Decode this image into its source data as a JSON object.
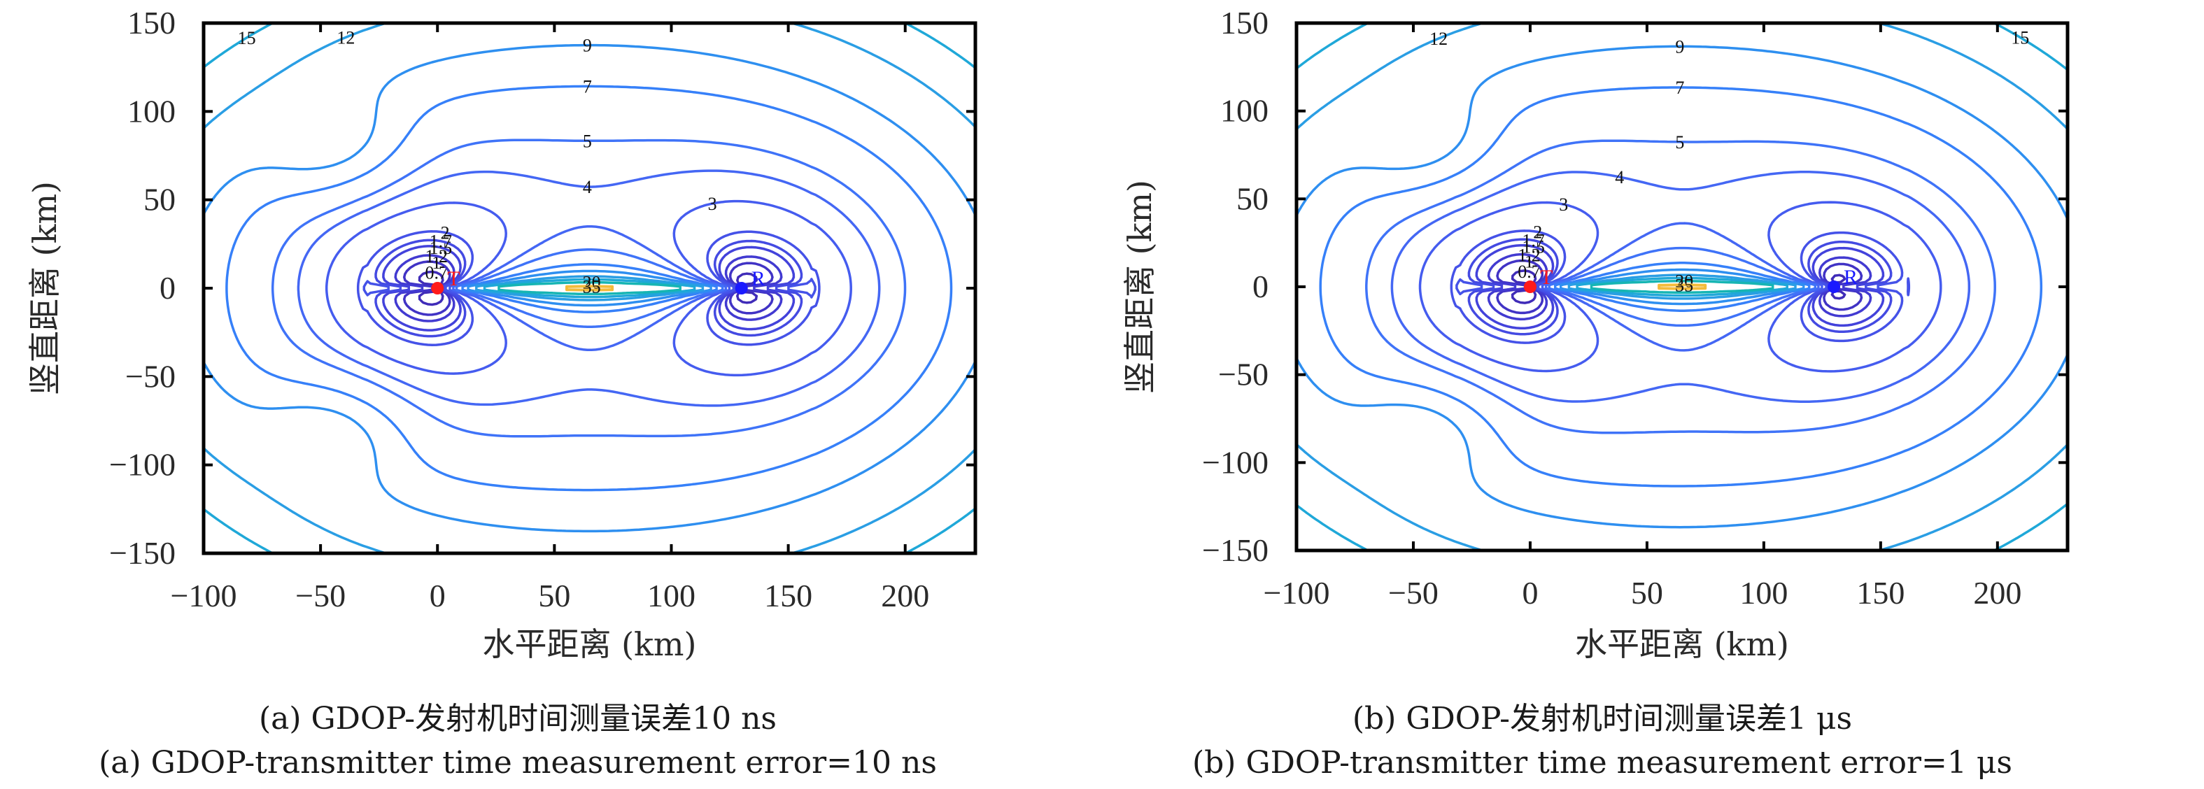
{
  "chart_data": [
    {
      "type": "contour",
      "panel": "a",
      "title": "",
      "xlabel": "水平距离 (km)",
      "ylabel": "竖直距离 (km)",
      "xlim": [
        -100,
        230
      ],
      "ylim": [
        -150,
        150
      ],
      "xticks": [
        -100,
        -50,
        0,
        50,
        100,
        150,
        200
      ],
      "xtick_labels": [
        "−100",
        "−50",
        "0",
        "50",
        "100",
        "150",
        "200"
      ],
      "yticks": [
        -150,
        -100,
        -50,
        0,
        50,
        100,
        150
      ],
      "ytick_labels": [
        "−150",
        "−100",
        "−50",
        "0",
        "50",
        "100",
        "150"
      ],
      "grid": false,
      "colormap": "parula",
      "contour_levels": [
        0.3,
        0.5,
        0.7,
        1,
        1.2,
        1.5,
        1.7,
        2,
        3,
        4,
        5,
        7,
        9,
        12,
        15,
        20,
        35,
        40
      ],
      "transmitter": {
        "label": "T",
        "x": 0,
        "y": 0,
        "color": "#ff1a1a"
      },
      "receiver": {
        "label": "R",
        "x": 130,
        "y": 0,
        "color": "#1a1aff"
      },
      "timing_error_ns": 10,
      "caption_zh": "(a) GDOP-发射机时间测量误差10 ns",
      "caption_en": "(a) GDOP-transmitter time measurement error=10 ns"
    },
    {
      "type": "contour",
      "panel": "b",
      "title": "",
      "xlabel": "水平距离 (km)",
      "ylabel": "竖直距离 (km)",
      "xlim": [
        -100,
        230
      ],
      "ylim": [
        -150,
        150
      ],
      "xticks": [
        -100,
        -50,
        0,
        50,
        100,
        150,
        200
      ],
      "xtick_labels": [
        "−100",
        "−50",
        "0",
        "50",
        "100",
        "150",
        "200"
      ],
      "yticks": [
        -150,
        -100,
        -50,
        0,
        50,
        100,
        150
      ],
      "ytick_labels": [
        "−150",
        "−100",
        "−50",
        "0",
        "50",
        "100",
        "150"
      ],
      "grid": false,
      "colormap": "parula",
      "contour_levels": [
        0.3,
        0.5,
        0.7,
        1,
        1.2,
        1.5,
        1.7,
        2,
        3,
        4,
        5,
        7,
        9,
        12,
        15,
        20,
        35,
        40
      ],
      "transmitter": {
        "label": "T",
        "x": 0,
        "y": 0,
        "color": "#ff1a1a"
      },
      "receiver": {
        "label": "R",
        "x": 130,
        "y": 0,
        "color": "#1a1aff"
      },
      "timing_error_ns": 1000,
      "caption_zh": "(b) GDOP-发射机时间测量误差1 μs",
      "caption_en": "(b) GDOP-transmitter time measurement error=1 μs"
    }
  ],
  "level_colors": {
    "0.3": "#3e26a8",
    "0.5": "#3e26a8",
    "0.7": "#402cb8",
    "1": "#4133c5",
    "1.2": "#423ad1",
    "1.5": "#4342db",
    "1.7": "#444ae2",
    "2": "#4552e8",
    "3": "#455cef",
    "4": "#4467f4",
    "5": "#3f73f8",
    "7": "#3680f9",
    "9": "#2e8ff0",
    "12": "#2a9ee4",
    "15": "#1fa8d8",
    "20": "#16b5b3",
    "35": "#f4bb3a",
    "40": "#f5ee1a"
  }
}
